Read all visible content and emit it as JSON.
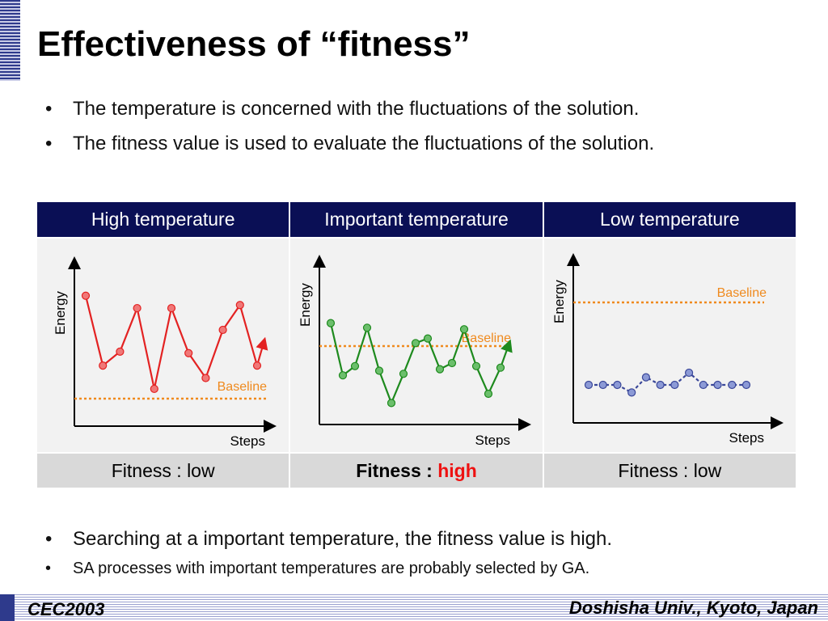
{
  "title": "Effectiveness of “fitness”",
  "bullets_top": [
    "The temperature is concerned with the fluctuations of the solution.",
    "The fitness value is used to evaluate the fluctuations of the solution."
  ],
  "panels": [
    {
      "header": "High temperature",
      "ylabel": "Energy",
      "xlabel": "Steps",
      "baseline_label": "Baseline",
      "fitness_label": "Fitness : ",
      "fitness_value": "low"
    },
    {
      "header": "Important temperature",
      "ylabel": "Energy",
      "xlabel": "Steps",
      "baseline_label": "Baseline",
      "fitness_label": "Fitness : ",
      "fitness_value": "high"
    },
    {
      "header": "Low temperature",
      "ylabel": "Energy",
      "xlabel": "Steps",
      "baseline_label": "Baseline",
      "fitness_label": "Fitness : ",
      "fitness_value": "low"
    }
  ],
  "series": {
    "high": {
      "color": "#e32222",
      "fill": "#f07878",
      "baseline": 0.15,
      "values": [
        0.84,
        0.39,
        0.48,
        0.76,
        0.24,
        0.76,
        0.47,
        0.31,
        0.62,
        0.78,
        0.39
      ]
    },
    "important": {
      "color": "#1e8a1e",
      "fill": "#6cbf6c",
      "baseline": 0.46,
      "values": [
        0.66,
        0.32,
        0.38,
        0.63,
        0.35,
        0.14,
        0.33,
        0.53,
        0.56,
        0.36,
        0.4,
        0.62,
        0.38,
        0.2,
        0.37
      ]
    },
    "low": {
      "color": "#3a4799",
      "fill": "#8c9ad6",
      "baseline": 0.75,
      "values": [
        0.25,
        0.25,
        0.25,
        0.2,
        0.3,
        0.25,
        0.25,
        0.33,
        0.25,
        0.25,
        0.25,
        0.25
      ]
    }
  },
  "colors": {
    "baseline": "#ef8a1e",
    "header_bg": "#0a0f55",
    "highlight": "#ee1111"
  },
  "bullets_bottom": [
    "Searching at a important temperature, the fitness value is high.",
    "SA processes with important temperatures are probably selected by GA."
  ],
  "footer": {
    "conference": "CEC2003",
    "affiliation": "Doshisha Univ., Kyoto, Japan"
  }
}
